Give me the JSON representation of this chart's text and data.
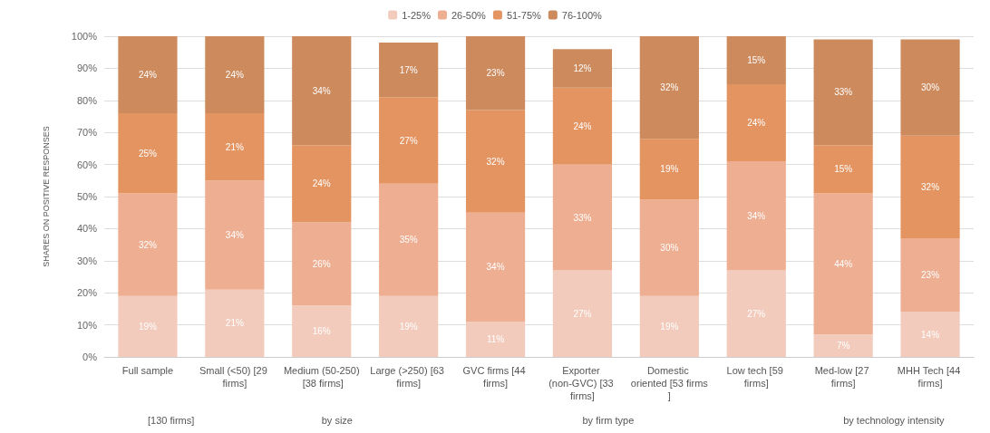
{
  "chart_data": {
    "type": "bar",
    "stacked": true,
    "ylabel": "SHARES ON POSITIVE RESPONSES",
    "categories": [
      "Full sample",
      "Small (<50) [29 firms]",
      "Medium (50-250) [38 firms]",
      "Large (>250) [63 firms]",
      "GVC firms [44 firms]",
      "Exporter (non-GVC) [33 firms]",
      "Domestic oriented [53 firms]",
      "Low tech [59 firms]",
      "Med-low [27 firms]",
      "MHH Tech [44 firms]"
    ],
    "series": [
      {
        "name": "1-25%",
        "color": "#f2cbbc",
        "values": [
          19,
          21,
          16,
          19,
          11,
          27,
          19,
          27,
          7,
          14
        ],
        "value_labels": [
          "19%",
          "21%",
          "16%",
          "19%",
          "11%",
          "27%",
          "19%",
          "27%",
          "7%",
          "14%"
        ]
      },
      {
        "name": "26-50%",
        "color": "#eeae92",
        "values": [
          32,
          34,
          26,
          35,
          34,
          33,
          30,
          34,
          44,
          23
        ],
        "value_labels": [
          "32%",
          "34%",
          "26%",
          "35%",
          "34%",
          "33%",
          "30%",
          "34%",
          "44%",
          "23%"
        ]
      },
      {
        "name": "51-75%",
        "color": "#e39461",
        "values": [
          25,
          21,
          24,
          27,
          32,
          24,
          19,
          24,
          15,
          32
        ],
        "value_labels": [
          "25%",
          "21%",
          "24%",
          "27%",
          "32%",
          "24%",
          "19%",
          "24%",
          "15%",
          "32%"
        ]
      },
      {
        "name": "76-100%",
        "color": "#cc8a5d",
        "values": [
          24,
          24,
          34,
          17,
          23,
          12,
          32,
          15,
          33,
          30
        ],
        "value_labels": [
          "24%",
          "24%",
          "34%",
          "17%",
          "23%",
          "12%",
          "32%",
          "15%",
          "33%",
          "30%"
        ]
      }
    ],
    "ylim": [
      0,
      100
    ],
    "yticks": [
      {
        "value": 0,
        "label": "0%"
      },
      {
        "value": 10,
        "label": "10%"
      },
      {
        "value": 20,
        "label": "20%"
      },
      {
        "value": 30,
        "label": "30%"
      },
      {
        "value": 40,
        "label": "40%"
      },
      {
        "value": 50,
        "label": "50%"
      },
      {
        "value": 60,
        "label": "60%"
      },
      {
        "value": 70,
        "label": "70%"
      },
      {
        "value": 80,
        "label": "80%"
      },
      {
        "value": 90,
        "label": "90%"
      },
      {
        "value": 100,
        "label": "100%"
      }
    ],
    "grid": "y",
    "legend": "top",
    "annotations": [
      "[130 firms]",
      "by size",
      "by firm type",
      "by technology intensity"
    ]
  }
}
